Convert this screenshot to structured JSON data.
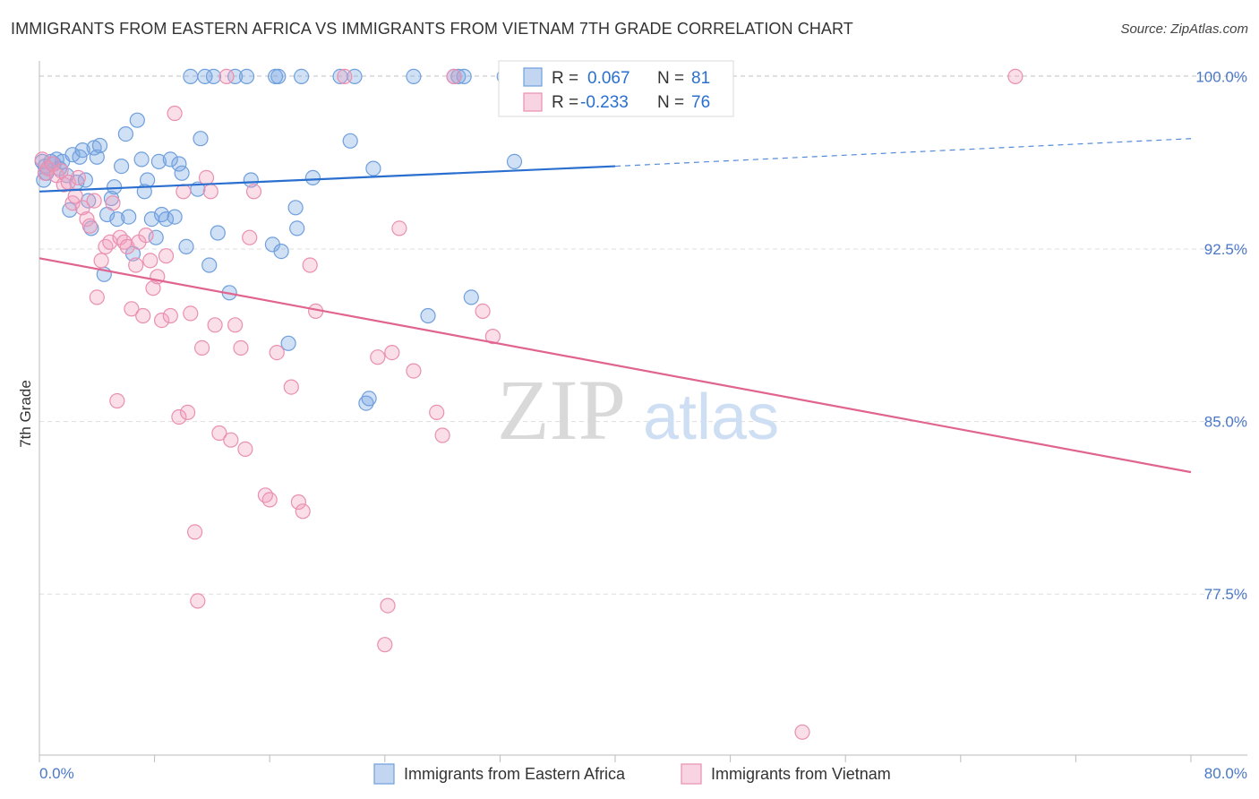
{
  "title": "IMMIGRANTS FROM EASTERN AFRICA VS IMMIGRANTS FROM VIETNAM 7TH GRADE CORRELATION CHART",
  "source": "Source: ZipAtlas.com",
  "watermark": {
    "zip": "ZIP",
    "atlas": "atlas"
  },
  "stats": [
    {
      "r_label": "R =",
      "r_value": "0.067",
      "n_label": "N =",
      "n_value": "81"
    },
    {
      "r_label": "R =",
      "r_value": "-0.233",
      "n_label": "N =",
      "n_value": "76"
    }
  ],
  "colors": {
    "blue": "#6f9fdd",
    "blue_fill": "rgba(120,165,225,0.35)",
    "blue_line": "#2a6fcf",
    "pink": "#ea8fb0",
    "pink_fill": "rgba(240,160,190,0.35)",
    "pink_line": "#e0648f",
    "tick": "#4a78c8",
    "grid": "#dddddd"
  },
  "chart_data": {
    "type": "scatter",
    "title": "IMMIGRANTS FROM EASTERN AFRICA VS IMMIGRANTS FROM VIETNAM 7TH GRADE CORRELATION CHART",
    "xlabel": "",
    "ylabel": "7th Grade",
    "xlim": [
      0,
      80
    ],
    "ylim": [
      70.5,
      100.6
    ],
    "x_tick_labels": [
      "0.0%",
      "80.0%"
    ],
    "y_ticks": [
      77.5,
      85.0,
      92.5,
      100.0
    ],
    "y_tick_labels": [
      "77.5%",
      "85.0%",
      "92.5%",
      "100.0%"
    ],
    "grid": true,
    "legend_position": "bottom-center",
    "series": [
      {
        "name": "Immigrants from Eastern Africa",
        "color": "#6f9fdd",
        "trend": {
          "x0": 0,
          "y0": 95.0,
          "x1": 40,
          "y1": 96.1,
          "dashed_to_x": 80,
          "dashed_to_y": 97.3
        },
        "points": [
          [
            0.2,
            96.3
          ],
          [
            0.3,
            95.5
          ],
          [
            0.4,
            96.1
          ],
          [
            0.5,
            95.8
          ],
          [
            0.6,
            96.0
          ],
          [
            0.8,
            96.3
          ],
          [
            1.0,
            96.2
          ],
          [
            1.2,
            96.4
          ],
          [
            1.4,
            96.0
          ],
          [
            1.6,
            96.3
          ],
          [
            1.9,
            95.7
          ],
          [
            2.1,
            94.2
          ],
          [
            2.3,
            96.6
          ],
          [
            2.6,
            95.4
          ],
          [
            2.8,
            96.5
          ],
          [
            3.0,
            96.8
          ],
          [
            3.2,
            95.5
          ],
          [
            3.4,
            94.6
          ],
          [
            3.6,
            93.4
          ],
          [
            3.8,
            96.9
          ],
          [
            4.0,
            96.5
          ],
          [
            4.2,
            97.0
          ],
          [
            4.5,
            91.4
          ],
          [
            4.7,
            94.0
          ],
          [
            5.0,
            94.7
          ],
          [
            5.2,
            95.2
          ],
          [
            5.4,
            93.8
          ],
          [
            5.7,
            96.1
          ],
          [
            6.0,
            97.5
          ],
          [
            6.2,
            93.9
          ],
          [
            6.5,
            92.3
          ],
          [
            6.8,
            98.1
          ],
          [
            7.1,
            96.4
          ],
          [
            7.3,
            95.0
          ],
          [
            7.5,
            95.5
          ],
          [
            7.8,
            93.8
          ],
          [
            8.1,
            93.0
          ],
          [
            8.3,
            96.3
          ],
          [
            8.5,
            94.0
          ],
          [
            8.8,
            93.8
          ],
          [
            9.1,
            96.4
          ],
          [
            9.4,
            93.9
          ],
          [
            9.7,
            96.2
          ],
          [
            9.9,
            95.8
          ],
          [
            10.2,
            92.6
          ],
          [
            10.5,
            100.0
          ],
          [
            11.0,
            95.1
          ],
          [
            11.2,
            97.3
          ],
          [
            11.5,
            100.0
          ],
          [
            11.8,
            91.8
          ],
          [
            12.1,
            100.0
          ],
          [
            12.4,
            93.2
          ],
          [
            13.2,
            90.6
          ],
          [
            13.6,
            100.0
          ],
          [
            14.4,
            100.0
          ],
          [
            14.7,
            95.5
          ],
          [
            16.2,
            92.7
          ],
          [
            16.4,
            100.0
          ],
          [
            16.6,
            100.0
          ],
          [
            16.8,
            92.4
          ],
          [
            17.3,
            88.4
          ],
          [
            17.8,
            94.3
          ],
          [
            17.9,
            93.4
          ],
          [
            18.2,
            100.0
          ],
          [
            19.0,
            95.6
          ],
          [
            20.9,
            100.0
          ],
          [
            21.6,
            97.2
          ],
          [
            21.9,
            100.0
          ],
          [
            22.7,
            85.8
          ],
          [
            22.9,
            86.0
          ],
          [
            23.2,
            96.0
          ],
          [
            26.0,
            100.0
          ],
          [
            27.0,
            89.6
          ],
          [
            28.8,
            100.0
          ],
          [
            29.1,
            100.0
          ],
          [
            29.5,
            100.0
          ],
          [
            30.0,
            90.4
          ],
          [
            32.3,
            100.0
          ],
          [
            33.0,
            96.3
          ],
          [
            36.5,
            100.0
          ],
          [
            37.5,
            100.0
          ]
        ]
      },
      {
        "name": "Immigrants from Vietnam",
        "color": "#ea8fb0",
        "trend": {
          "x0": 0,
          "y0": 92.1,
          "x1": 80,
          "y1": 82.8
        },
        "points": [
          [
            0.2,
            96.4
          ],
          [
            0.4,
            95.8
          ],
          [
            0.6,
            96.0
          ],
          [
            0.9,
            96.2
          ],
          [
            1.2,
            95.7
          ],
          [
            1.5,
            95.9
          ],
          [
            1.7,
            95.3
          ],
          [
            2.0,
            95.4
          ],
          [
            2.3,
            94.5
          ],
          [
            2.5,
            94.8
          ],
          [
            2.7,
            95.6
          ],
          [
            3.0,
            94.3
          ],
          [
            3.3,
            93.8
          ],
          [
            3.5,
            93.5
          ],
          [
            3.8,
            94.6
          ],
          [
            4.0,
            90.4
          ],
          [
            4.3,
            92.0
          ],
          [
            4.6,
            92.6
          ],
          [
            4.9,
            92.8
          ],
          [
            5.1,
            94.5
          ],
          [
            5.4,
            85.9
          ],
          [
            5.6,
            93.0
          ],
          [
            5.9,
            92.8
          ],
          [
            6.1,
            92.6
          ],
          [
            6.4,
            89.9
          ],
          [
            6.7,
            91.8
          ],
          [
            6.9,
            92.8
          ],
          [
            7.2,
            89.6
          ],
          [
            7.4,
            93.1
          ],
          [
            7.7,
            92.0
          ],
          [
            7.9,
            90.8
          ],
          [
            8.2,
            91.3
          ],
          [
            8.5,
            89.4
          ],
          [
            8.8,
            92.2
          ],
          [
            9.1,
            89.6
          ],
          [
            9.4,
            98.4
          ],
          [
            9.7,
            85.2
          ],
          [
            10.0,
            95.0
          ],
          [
            10.3,
            85.4
          ],
          [
            10.5,
            89.7
          ],
          [
            10.8,
            80.2
          ],
          [
            11.0,
            77.2
          ],
          [
            11.3,
            88.2
          ],
          [
            11.6,
            95.6
          ],
          [
            11.9,
            95.0
          ],
          [
            12.2,
            89.2
          ],
          [
            12.5,
            84.5
          ],
          [
            13.0,
            100.0
          ],
          [
            13.3,
            84.2
          ],
          [
            13.6,
            89.2
          ],
          [
            14.0,
            88.2
          ],
          [
            14.3,
            83.8
          ],
          [
            14.6,
            93.0
          ],
          [
            14.9,
            95.0
          ],
          [
            15.7,
            81.8
          ],
          [
            16.0,
            81.6
          ],
          [
            16.5,
            88.0
          ],
          [
            17.5,
            86.5
          ],
          [
            18.0,
            81.5
          ],
          [
            18.3,
            81.1
          ],
          [
            18.8,
            91.8
          ],
          [
            19.2,
            89.8
          ],
          [
            21.2,
            100.0
          ],
          [
            23.5,
            87.8
          ],
          [
            24.0,
            75.3
          ],
          [
            24.2,
            77.0
          ],
          [
            24.5,
            88.0
          ],
          [
            25.0,
            93.4
          ],
          [
            26.0,
            87.2
          ],
          [
            27.6,
            85.4
          ],
          [
            28.0,
            84.4
          ],
          [
            28.8,
            100.0
          ],
          [
            30.8,
            89.8
          ],
          [
            31.5,
            88.7
          ],
          [
            53.0,
            71.5
          ],
          [
            67.8,
            100.0
          ]
        ]
      }
    ]
  }
}
